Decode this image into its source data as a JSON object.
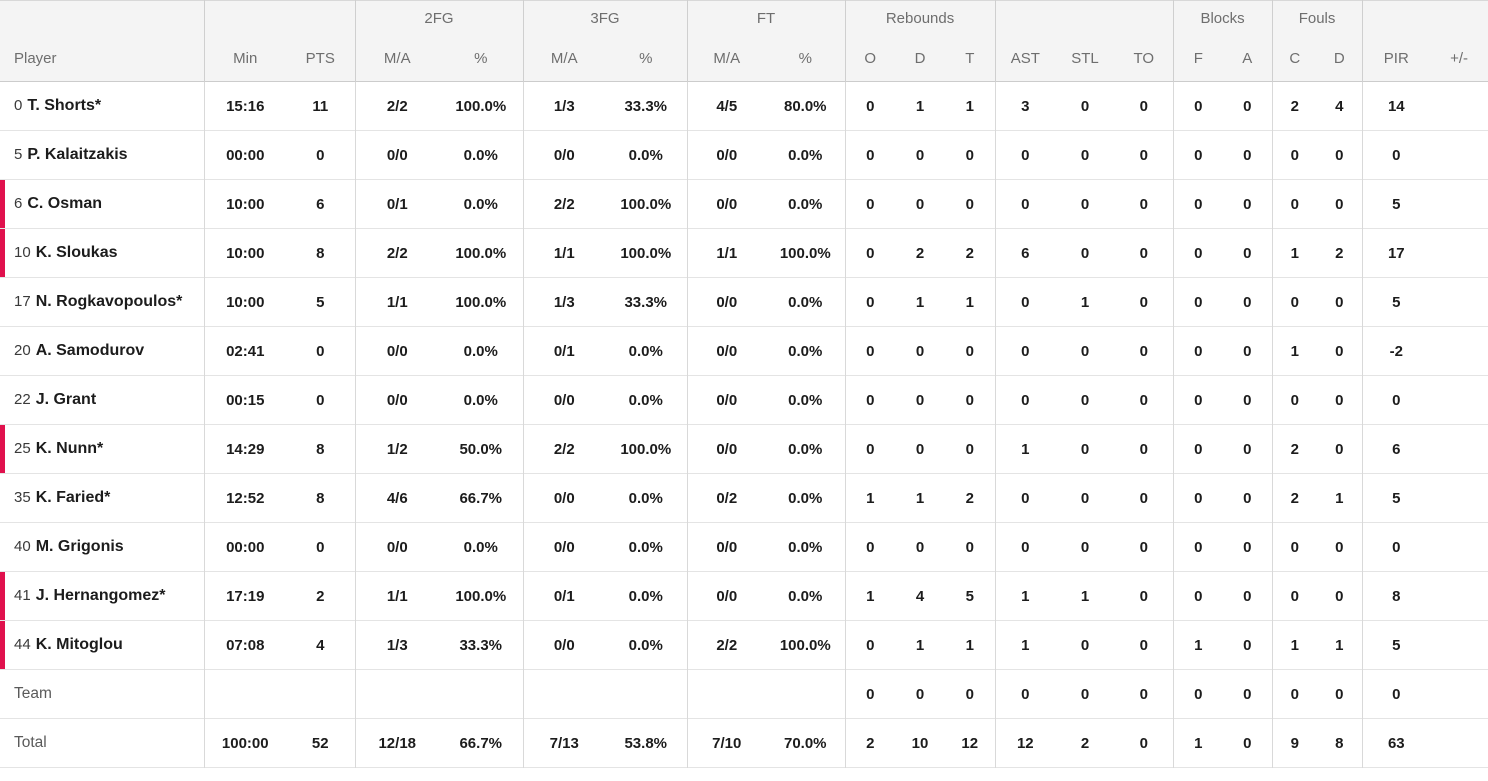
{
  "colors": {
    "accent": "#e0114d",
    "header_bg": "#f4f4f4",
    "on_court_marker": "#e0114d"
  },
  "table": {
    "groups": [
      "2FG",
      "3FG",
      "FT",
      "Rebounds",
      "Blocks",
      "Fouls"
    ],
    "header": [
      "Player",
      "Min",
      "PTS",
      "M/A",
      "%",
      "M/A",
      "%",
      "M/A",
      "%",
      "O",
      "D",
      "T",
      "AST",
      "STL",
      "TO",
      "F",
      "A",
      "C",
      "D",
      "PIR",
      "+/-"
    ],
    "rows": [
      {
        "type": "player",
        "number": "0",
        "name": "T. Shorts*",
        "on_court": false,
        "stats": [
          "15:16",
          "11",
          "2/2",
          "100.0%",
          "1/3",
          "33.3%",
          "4/5",
          "80.0%",
          "0",
          "1",
          "1",
          "3",
          "0",
          "0",
          "0",
          "0",
          "2",
          "4",
          "14",
          ""
        ]
      },
      {
        "type": "player",
        "number": "5",
        "name": "P. Kalaitzakis",
        "on_court": false,
        "stats": [
          "00:00",
          "0",
          "0/0",
          "0.0%",
          "0/0",
          "0.0%",
          "0/0",
          "0.0%",
          "0",
          "0",
          "0",
          "0",
          "0",
          "0",
          "0",
          "0",
          "0",
          "0",
          "0",
          ""
        ]
      },
      {
        "type": "player",
        "number": "6",
        "name": "C. Osman",
        "on_court": true,
        "stats": [
          "10:00",
          "6",
          "0/1",
          "0.0%",
          "2/2",
          "100.0%",
          "0/0",
          "0.0%",
          "0",
          "0",
          "0",
          "0",
          "0",
          "0",
          "0",
          "0",
          "0",
          "0",
          "5",
          ""
        ]
      },
      {
        "type": "player",
        "number": "10",
        "name": "K. Sloukas",
        "on_court": true,
        "stats": [
          "10:00",
          "8",
          "2/2",
          "100.0%",
          "1/1",
          "100.0%",
          "1/1",
          "100.0%",
          "0",
          "2",
          "2",
          "6",
          "0",
          "0",
          "0",
          "0",
          "1",
          "2",
          "17",
          ""
        ]
      },
      {
        "type": "player",
        "number": "17",
        "name": "N. Rogkavopoulos*",
        "on_court": false,
        "stats": [
          "10:00",
          "5",
          "1/1",
          "100.0%",
          "1/3",
          "33.3%",
          "0/0",
          "0.0%",
          "0",
          "1",
          "1",
          "0",
          "1",
          "0",
          "0",
          "0",
          "0",
          "0",
          "5",
          ""
        ]
      },
      {
        "type": "player",
        "number": "20",
        "name": "A. Samodurov",
        "on_court": false,
        "stats": [
          "02:41",
          "0",
          "0/0",
          "0.0%",
          "0/1",
          "0.0%",
          "0/0",
          "0.0%",
          "0",
          "0",
          "0",
          "0",
          "0",
          "0",
          "0",
          "0",
          "1",
          "0",
          "-2",
          ""
        ]
      },
      {
        "type": "player",
        "number": "22",
        "name": "J. Grant",
        "on_court": false,
        "stats": [
          "00:15",
          "0",
          "0/0",
          "0.0%",
          "0/0",
          "0.0%",
          "0/0",
          "0.0%",
          "0",
          "0",
          "0",
          "0",
          "0",
          "0",
          "0",
          "0",
          "0",
          "0",
          "0",
          ""
        ]
      },
      {
        "type": "player",
        "number": "25",
        "name": "K. Nunn*",
        "on_court": true,
        "stats": [
          "14:29",
          "8",
          "1/2",
          "50.0%",
          "2/2",
          "100.0%",
          "0/0",
          "0.0%",
          "0",
          "0",
          "0",
          "1",
          "0",
          "0",
          "0",
          "0",
          "2",
          "0",
          "6",
          ""
        ]
      },
      {
        "type": "player",
        "number": "35",
        "name": "K. Faried*",
        "on_court": false,
        "stats": [
          "12:52",
          "8",
          "4/6",
          "66.7%",
          "0/0",
          "0.0%",
          "0/2",
          "0.0%",
          "1",
          "1",
          "2",
          "0",
          "0",
          "0",
          "0",
          "0",
          "2",
          "1",
          "5",
          ""
        ]
      },
      {
        "type": "player",
        "number": "40",
        "name": "M. Grigonis",
        "on_court": false,
        "stats": [
          "00:00",
          "0",
          "0/0",
          "0.0%",
          "0/0",
          "0.0%",
          "0/0",
          "0.0%",
          "0",
          "0",
          "0",
          "0",
          "0",
          "0",
          "0",
          "0",
          "0",
          "0",
          "0",
          ""
        ]
      },
      {
        "type": "player",
        "number": "41",
        "name": "J. Hernangomez*",
        "on_court": true,
        "stats": [
          "17:19",
          "2",
          "1/1",
          "100.0%",
          "0/1",
          "0.0%",
          "0/0",
          "0.0%",
          "1",
          "4",
          "5",
          "1",
          "1",
          "0",
          "0",
          "0",
          "0",
          "0",
          "8",
          ""
        ]
      },
      {
        "type": "player",
        "number": "44",
        "name": "K. Mitoglou",
        "on_court": true,
        "stats": [
          "07:08",
          "4",
          "1/3",
          "33.3%",
          "0/0",
          "0.0%",
          "2/2",
          "100.0%",
          "0",
          "1",
          "1",
          "1",
          "0",
          "0",
          "1",
          "0",
          "1",
          "1",
          "5",
          ""
        ]
      },
      {
        "type": "team",
        "label": "Team",
        "stats": [
          "",
          "",
          "",
          "",
          "",
          "",
          "",
          "",
          "0",
          "0",
          "0",
          "0",
          "0",
          "0",
          "0",
          "0",
          "0",
          "0",
          "0",
          ""
        ]
      },
      {
        "type": "total",
        "label": "Total",
        "stats": [
          "100:00",
          "52",
          "12/18",
          "66.7%",
          "7/13",
          "53.8%",
          "7/10",
          "70.0%",
          "2",
          "10",
          "12",
          "12",
          "2",
          "0",
          "1",
          "0",
          "9",
          "8",
          "63",
          ""
        ]
      }
    ]
  }
}
